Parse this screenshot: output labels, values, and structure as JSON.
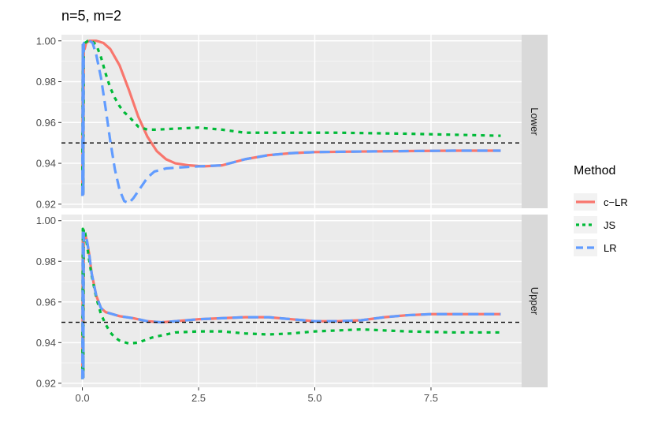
{
  "chart_data": {
    "type": "line",
    "title": "n=5, m=2",
    "xlabel": "",
    "ylabel": "",
    "xlim": [
      -0.45,
      9.45
    ],
    "ylim": [
      0.918,
      1.003
    ],
    "x_ticks": [
      0,
      2.5,
      5,
      7.5
    ],
    "x_tick_labels": [
      "0.0",
      "2.5",
      "5.0",
      "7.5"
    ],
    "y_ticks": [
      0.92,
      0.94,
      0.96,
      0.98,
      1.0
    ],
    "y_tick_labels": [
      "0.92",
      "0.94",
      "0.96",
      "0.98",
      "1.00"
    ],
    "reference_line": 0.95,
    "grid": true,
    "legend": {
      "title": "Method",
      "position": "right",
      "entries": [
        {
          "label": "c−LR",
          "color": "#F8766D",
          "dash": "solid"
        },
        {
          "label": "JS",
          "color": "#00BA38",
          "dash": "dotted"
        },
        {
          "label": "LR",
          "color": "#619CFF",
          "dash": "longdash"
        }
      ]
    },
    "panels": [
      {
        "strip": "Lower",
        "series": [
          {
            "name": "c−LR",
            "points": [
              [
                0,
                0.924
              ],
              [
                0.01,
                0.998
              ],
              [
                0.02,
                0.925
              ],
              [
                0.03,
                0.998
              ],
              [
                0.05,
                0.996
              ],
              [
                0.08,
                0.999
              ],
              [
                0.15,
                1.0
              ],
              [
                0.3,
                1.0
              ],
              [
                0.45,
                0.999
              ],
              [
                0.6,
                0.996
              ],
              [
                0.8,
                0.988
              ],
              [
                1.0,
                0.976
              ],
              [
                1.2,
                0.963
              ],
              [
                1.4,
                0.953
              ],
              [
                1.6,
                0.946
              ],
              [
                1.8,
                0.942
              ],
              [
                2.0,
                0.94
              ],
              [
                2.3,
                0.939
              ],
              [
                2.6,
                0.9385
              ],
              [
                3.0,
                0.939
              ],
              [
                3.5,
                0.942
              ],
              [
                4.0,
                0.944
              ],
              [
                4.5,
                0.945
              ],
              [
                5.0,
                0.9455
              ],
              [
                6.0,
                0.9458
              ],
              [
                7.0,
                0.946
              ],
              [
                8.0,
                0.9462
              ],
              [
                9.0,
                0.9462
              ]
            ]
          },
          {
            "name": "JS",
            "points": [
              [
                0,
                0.924
              ],
              [
                0.01,
                0.998
              ],
              [
                0.02,
                0.925
              ],
              [
                0.03,
                0.998
              ],
              [
                0.06,
                0.999
              ],
              [
                0.12,
                1.0
              ],
              [
                0.2,
                1.0
              ],
              [
                0.3,
                0.998
              ],
              [
                0.4,
                0.992
              ],
              [
                0.5,
                0.984
              ],
              [
                0.6,
                0.977
              ],
              [
                0.7,
                0.972
              ],
              [
                0.8,
                0.968
              ],
              [
                0.9,
                0.965
              ],
              [
                1.0,
                0.963
              ],
              [
                1.2,
                0.958
              ],
              [
                1.4,
                0.9565
              ],
              [
                1.6,
                0.9565
              ],
              [
                2.0,
                0.957
              ],
              [
                2.5,
                0.9575
              ],
              [
                3.0,
                0.9565
              ],
              [
                3.5,
                0.955
              ],
              [
                4.5,
                0.955
              ],
              [
                5.5,
                0.955
              ],
              [
                7.0,
                0.9545
              ],
              [
                8.0,
                0.954
              ],
              [
                9.0,
                0.9535
              ]
            ]
          },
          {
            "name": "LR",
            "points": [
              [
                0,
                0.924
              ],
              [
                0.01,
                0.998
              ],
              [
                0.02,
                0.925
              ],
              [
                0.03,
                0.999
              ],
              [
                0.1,
                1.0
              ],
              [
                0.15,
                1.0
              ],
              [
                0.22,
                0.999
              ],
              [
                0.3,
                0.993
              ],
              [
                0.4,
                0.982
              ],
              [
                0.5,
                0.967
              ],
              [
                0.6,
                0.951
              ],
              [
                0.7,
                0.937
              ],
              [
                0.8,
                0.927
              ],
              [
                0.9,
                0.9215
              ],
              [
                1.0,
                0.9205
              ],
              [
                1.1,
                0.923
              ],
              [
                1.25,
                0.928
              ],
              [
                1.4,
                0.933
              ],
              [
                1.55,
                0.936
              ],
              [
                1.8,
                0.9375
              ],
              [
                2.1,
                0.938
              ],
              [
                2.5,
                0.9385
              ],
              [
                3.0,
                0.939
              ],
              [
                3.5,
                0.942
              ],
              [
                4.0,
                0.944
              ],
              [
                4.5,
                0.945
              ],
              [
                5.0,
                0.9455
              ],
              [
                6.0,
                0.9458
              ],
              [
                7.0,
                0.946
              ],
              [
                8.0,
                0.9462
              ],
              [
                9.0,
                0.9462
              ]
            ]
          }
        ]
      },
      {
        "strip": "Upper",
        "series": [
          {
            "name": "c−LR",
            "points": [
              [
                0,
                0.922
              ],
              [
                0.01,
                0.994
              ],
              [
                0.02,
                0.923
              ],
              [
                0.03,
                0.994
              ],
              [
                0.06,
                0.993
              ],
              [
                0.1,
                0.99
              ],
              [
                0.15,
                0.983
              ],
              [
                0.2,
                0.974
              ],
              [
                0.3,
                0.963
              ],
              [
                0.4,
                0.957
              ],
              [
                0.5,
                0.955
              ],
              [
                0.8,
                0.953
              ],
              [
                1.1,
                0.952
              ],
              [
                1.4,
                0.9505
              ],
              [
                1.7,
                0.95
              ],
              [
                2.0,
                0.9505
              ],
              [
                2.5,
                0.9515
              ],
              [
                3.0,
                0.952
              ],
              [
                3.5,
                0.9525
              ],
              [
                4.0,
                0.9525
              ],
              [
                4.5,
                0.9515
              ],
              [
                5.0,
                0.9505
              ],
              [
                5.5,
                0.9505
              ],
              [
                6.0,
                0.951
              ],
              [
                6.5,
                0.9525
              ],
              [
                7.0,
                0.9535
              ],
              [
                7.5,
                0.954
              ],
              [
                8.0,
                0.954
              ],
              [
                8.5,
                0.954
              ],
              [
                9.0,
                0.954
              ]
            ]
          },
          {
            "name": "JS",
            "points": [
              [
                0,
                0.922
              ],
              [
                0.01,
                0.996
              ],
              [
                0.02,
                0.923
              ],
              [
                0.03,
                0.996
              ],
              [
                0.06,
                0.994
              ],
              [
                0.1,
                0.988
              ],
              [
                0.15,
                0.98
              ],
              [
                0.2,
                0.973
              ],
              [
                0.3,
                0.962
              ],
              [
                0.4,
                0.954
              ],
              [
                0.5,
                0.949
              ],
              [
                0.6,
                0.945
              ],
              [
                0.7,
                0.9425
              ],
              [
                0.8,
                0.941
              ],
              [
                1.0,
                0.9395
              ],
              [
                1.2,
                0.94
              ],
              [
                1.5,
                0.9425
              ],
              [
                2.0,
                0.945
              ],
              [
                2.5,
                0.9455
              ],
              [
                3.0,
                0.9455
              ],
              [
                3.5,
                0.9445
              ],
              [
                4.0,
                0.944
              ],
              [
                4.5,
                0.9445
              ],
              [
                5.0,
                0.9455
              ],
              [
                5.5,
                0.946
              ],
              [
                6.0,
                0.9465
              ],
              [
                6.5,
                0.946
              ],
              [
                7.0,
                0.9455
              ],
              [
                8.0,
                0.945
              ],
              [
                9.0,
                0.945
              ]
            ]
          },
          {
            "name": "LR",
            "points": [
              [
                0,
                0.922
              ],
              [
                0.01,
                0.994
              ],
              [
                0.02,
                0.923
              ],
              [
                0.03,
                0.994
              ],
              [
                0.06,
                0.993
              ],
              [
                0.1,
                0.99
              ],
              [
                0.15,
                0.983
              ],
              [
                0.2,
                0.974
              ],
              [
                0.3,
                0.963
              ],
              [
                0.4,
                0.957
              ],
              [
                0.5,
                0.955
              ],
              [
                0.8,
                0.953
              ],
              [
                1.1,
                0.952
              ],
              [
                1.4,
                0.9505
              ],
              [
                1.7,
                0.95
              ],
              [
                2.0,
                0.9505
              ],
              [
                2.5,
                0.9515
              ],
              [
                3.0,
                0.952
              ],
              [
                3.5,
                0.9525
              ],
              [
                4.0,
                0.9525
              ],
              [
                4.5,
                0.9515
              ],
              [
                5.0,
                0.9505
              ],
              [
                5.5,
                0.9505
              ],
              [
                6.0,
                0.951
              ],
              [
                6.5,
                0.9525
              ],
              [
                7.0,
                0.9535
              ],
              [
                7.5,
                0.954
              ],
              [
                8.0,
                0.954
              ],
              [
                8.5,
                0.954
              ],
              [
                9.0,
                0.954
              ]
            ]
          }
        ]
      }
    ]
  }
}
